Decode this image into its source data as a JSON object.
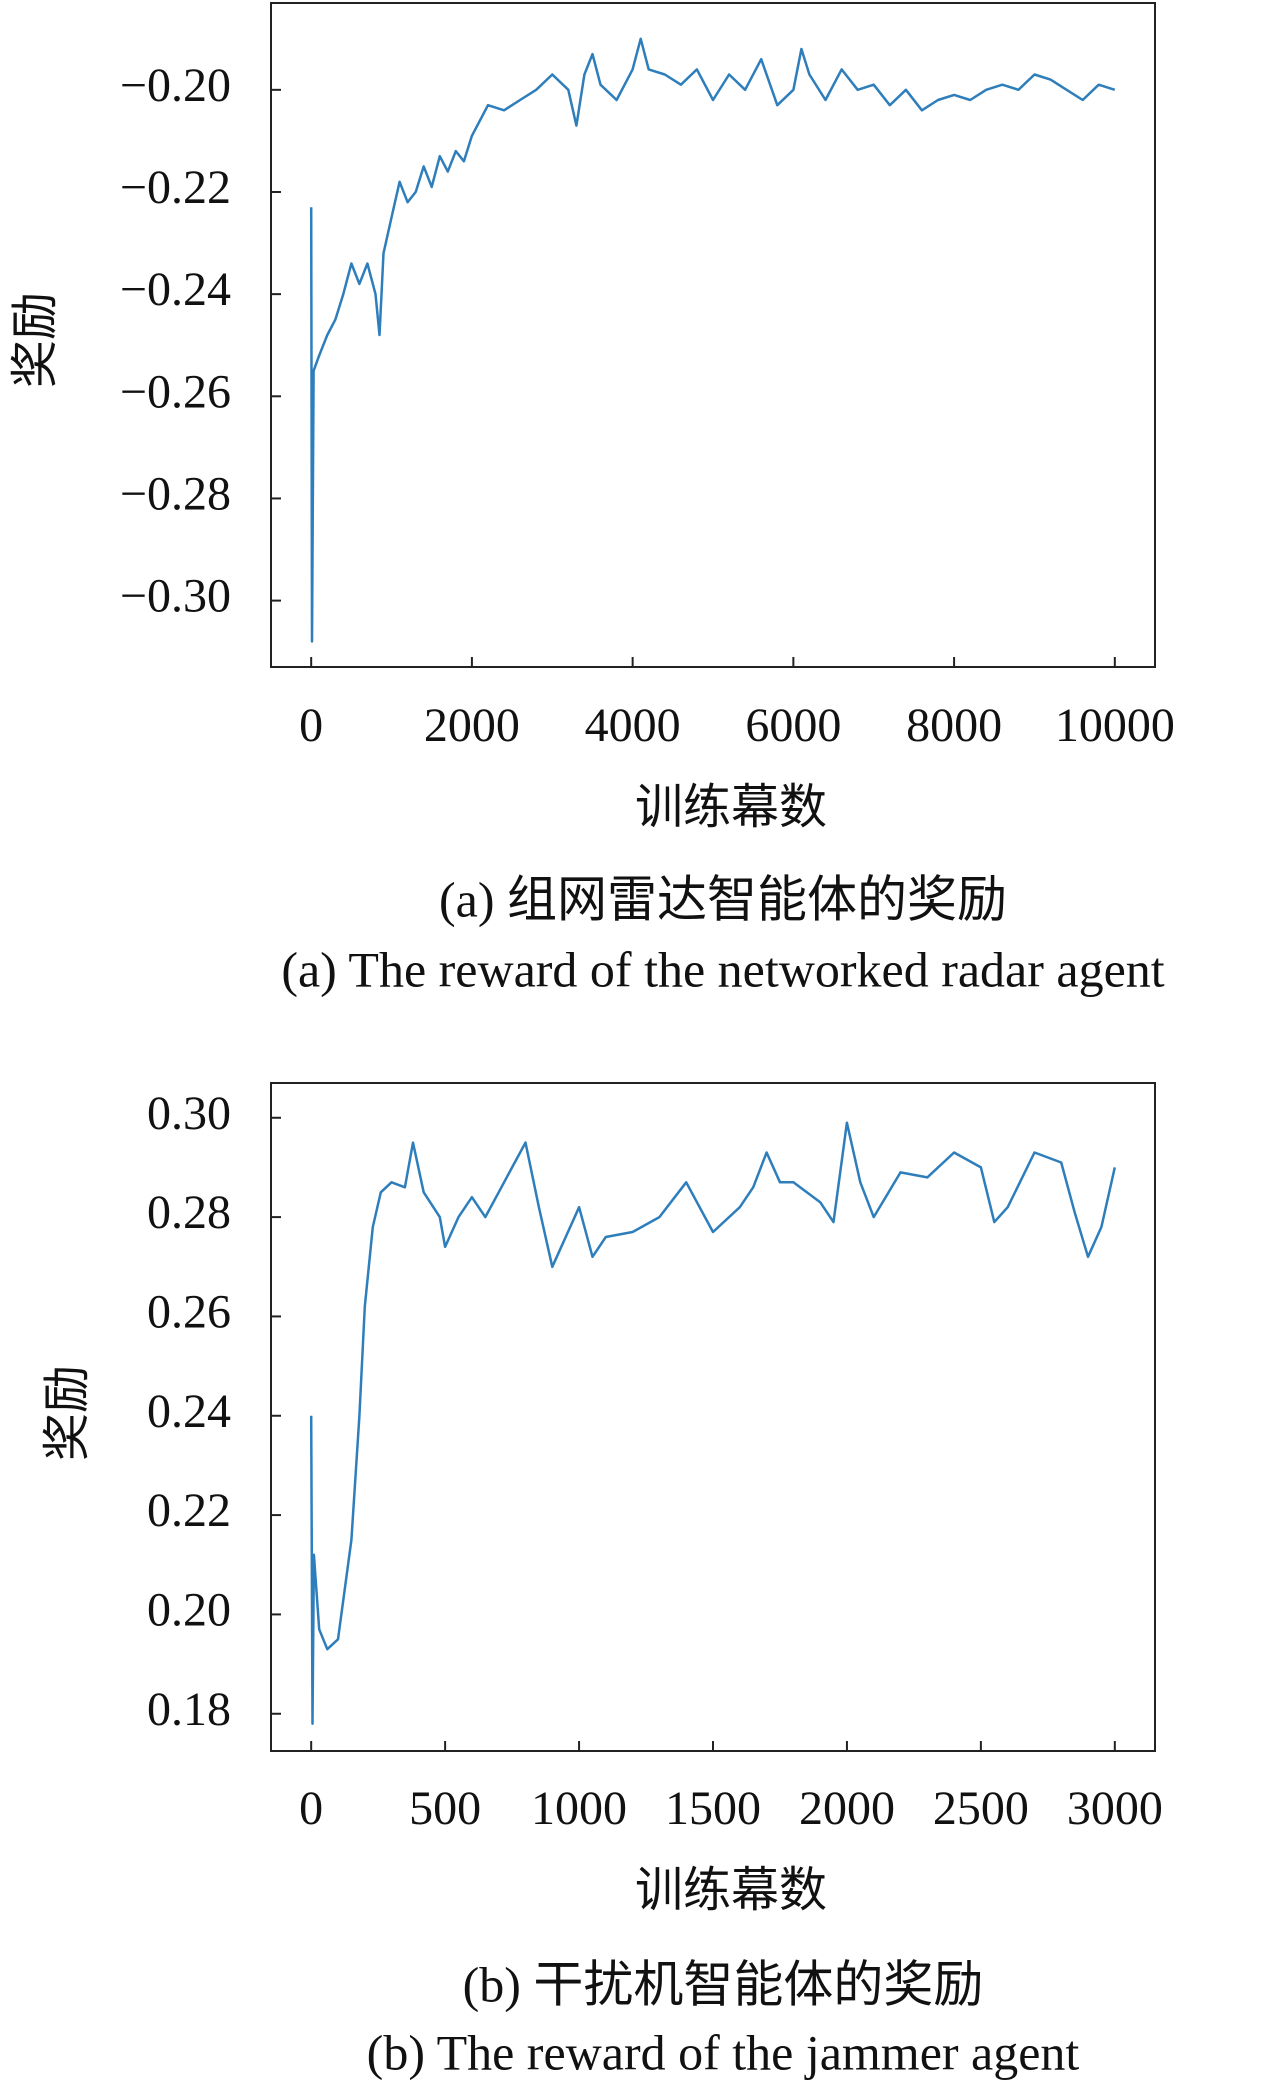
{
  "chart_data": [
    {
      "type": "line",
      "caption": "(a) 组网雷达智能体的奖励",
      "caption_en": "(a) The reward of the networked radar agent",
      "x_label": "训练幕数",
      "y_label": "奖励",
      "xlim": [
        -500,
        10500
      ],
      "ylim": [
        -0.313,
        -0.183
      ],
      "xticks": [
        0,
        2000,
        4000,
        6000,
        8000,
        10000
      ],
      "yticks": [
        {
          "value": -0.2,
          "label": "−0.20"
        },
        {
          "value": -0.22,
          "label": "−0.22"
        },
        {
          "value": -0.24,
          "label": "−0.24"
        },
        {
          "value": -0.26,
          "label": "−0.26"
        },
        {
          "value": -0.28,
          "label": "−0.28"
        },
        {
          "value": -0.3,
          "label": "−0.30"
        }
      ],
      "x": [
        0,
        10,
        30,
        100,
        200,
        300,
        400,
        500,
        600,
        700,
        800,
        850,
        900,
        1000,
        1100,
        1200,
        1300,
        1400,
        1500,
        1600,
        1700,
        1800,
        1900,
        2000,
        2200,
        2400,
        2600,
        2800,
        3000,
        3200,
        3300,
        3400,
        3500,
        3600,
        3800,
        4000,
        4100,
        4200,
        4400,
        4600,
        4800,
        5000,
        5200,
        5400,
        5600,
        5800,
        6000,
        6100,
        6200,
        6400,
        6600,
        6800,
        7000,
        7200,
        7400,
        7600,
        7800,
        8000,
        8200,
        8400,
        8600,
        8800,
        9000,
        9200,
        9400,
        9600,
        9800,
        10000
      ],
      "series": [
        {
          "color": "#2e7ebc",
          "values": [
            -0.223,
            -0.308,
            -0.255,
            -0.252,
            -0.248,
            -0.245,
            -0.24,
            -0.234,
            -0.238,
            -0.234,
            -0.24,
            -0.248,
            -0.232,
            -0.225,
            -0.218,
            -0.222,
            -0.22,
            -0.215,
            -0.219,
            -0.213,
            -0.216,
            -0.212,
            -0.214,
            -0.209,
            -0.203,
            -0.204,
            -0.202,
            -0.2,
            -0.197,
            -0.2,
            -0.207,
            -0.197,
            -0.193,
            -0.199,
            -0.202,
            -0.196,
            -0.19,
            -0.196,
            -0.197,
            -0.199,
            -0.196,
            -0.202,
            -0.197,
            -0.2,
            -0.194,
            -0.203,
            -0.2,
            -0.192,
            -0.197,
            -0.202,
            -0.196,
            -0.2,
            -0.199,
            -0.203,
            -0.2,
            -0.204,
            -0.202,
            -0.201,
            -0.202,
            -0.2,
            -0.199,
            -0.2,
            -0.197,
            -0.198,
            -0.2,
            -0.202,
            -0.199,
            -0.2
          ]
        }
      ]
    },
    {
      "type": "line",
      "caption": "(b) 干扰机智能体的奖励",
      "caption_en": "(b) The reward of the jammer agent",
      "x_label": "训练幕数",
      "y_label": "奖励",
      "xlim": [
        -150,
        3150
      ],
      "ylim": [
        0.1725,
        0.307
      ],
      "xticks": [
        0,
        500,
        1000,
        1500,
        2000,
        2500,
        3000
      ],
      "yticks": [
        {
          "value": 0.3,
          "label": "0.30"
        },
        0.28,
        0.26,
        0.24,
        0.22,
        {
          "value": 0.2,
          "label": "0.20"
        },
        0.18
      ],
      "x": [
        0,
        5,
        10,
        30,
        60,
        100,
        150,
        180,
        200,
        230,
        260,
        300,
        350,
        380,
        420,
        480,
        500,
        550,
        600,
        650,
        700,
        750,
        800,
        850,
        900,
        950,
        1000,
        1050,
        1100,
        1200,
        1300,
        1400,
        1500,
        1600,
        1650,
        1700,
        1750,
        1800,
        1900,
        1950,
        2000,
        2050,
        2100,
        2200,
        2300,
        2400,
        2500,
        2550,
        2600,
        2700,
        2800,
        2850,
        2900,
        2950,
        3000
      ],
      "series": [
        {
          "color": "#2e7ebc",
          "values": [
            0.24,
            0.178,
            0.212,
            0.197,
            0.193,
            0.195,
            0.215,
            0.24,
            0.262,
            0.278,
            0.285,
            0.287,
            0.286,
            0.295,
            0.285,
            0.28,
            0.274,
            0.28,
            0.284,
            0.28,
            0.285,
            0.29,
            0.295,
            0.282,
            0.27,
            0.276,
            0.282,
            0.272,
            0.276,
            0.277,
            0.28,
            0.287,
            0.277,
            0.282,
            0.286,
            0.293,
            0.287,
            0.287,
            0.283,
            0.279,
            0.299,
            0.287,
            0.28,
            0.289,
            0.288,
            0.293,
            0.29,
            0.279,
            0.282,
            0.293,
            0.291,
            0.281,
            0.272,
            0.278,
            0.29
          ]
        }
      ]
    }
  ]
}
